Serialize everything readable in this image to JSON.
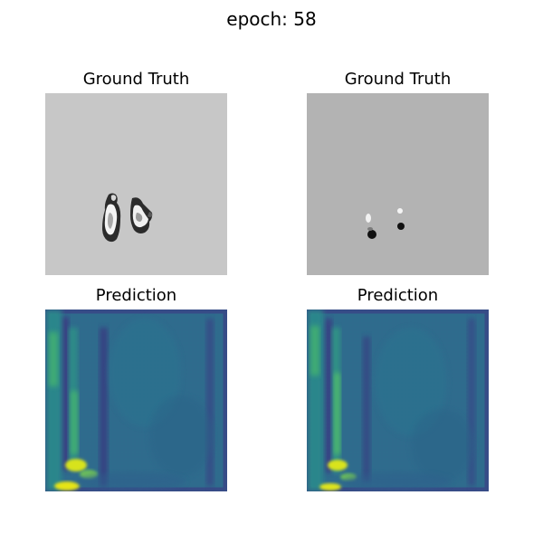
{
  "figure": {
    "title": "epoch: 58"
  },
  "panels": [
    {
      "title": "Ground Truth",
      "kind": "grayscale image",
      "background": "#c7c7c7"
    },
    {
      "title": "Ground Truth",
      "kind": "grayscale image",
      "background": "#b3b3b3"
    },
    {
      "title": "Prediction",
      "kind": "viridis heatmap"
    },
    {
      "title": "Prediction",
      "kind": "viridis heatmap"
    }
  ],
  "colors": {
    "viridis_dark": "#3b2f7e",
    "viridis_mid": "#2d6f8e",
    "viridis_teal": "#2a8a8b",
    "viridis_green": "#45b36f",
    "viridis_yellow": "#e0e31f"
  }
}
